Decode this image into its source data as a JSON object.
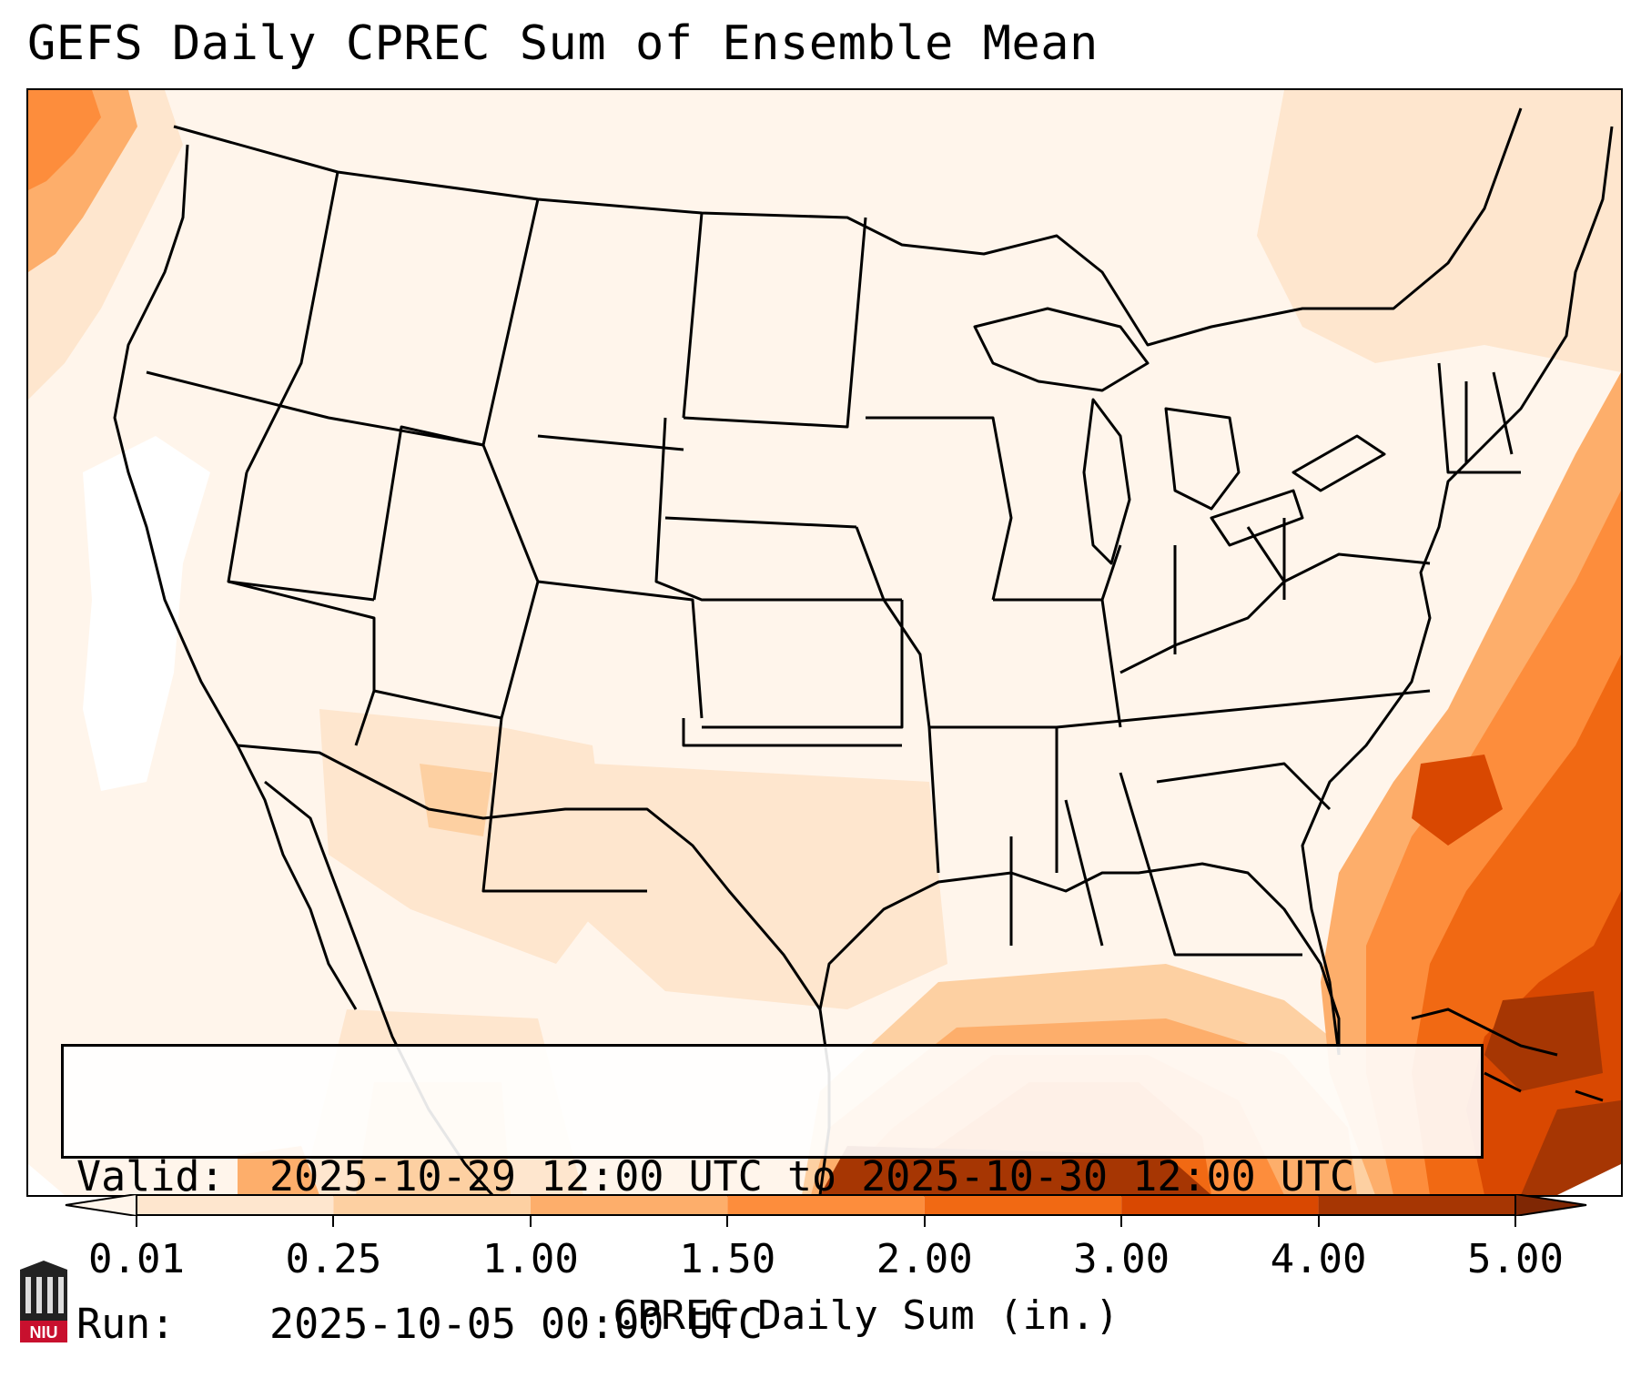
{
  "title": "GEFS Daily CPREC Sum of Ensemble Mean",
  "info": {
    "valid_label": "Valid:",
    "valid_value": "2025-10-29 12:00 UTC to 2025-10-30 12:00 UTC",
    "run_label": "Run:",
    "run_value": "2025-10-05 00:00 UTC"
  },
  "colorbar": {
    "label": "CPREC Daily Sum (in.)",
    "ticks": [
      "0.01",
      "0.25",
      "1.00",
      "1.50",
      "2.00",
      "3.00",
      "4.00",
      "5.00"
    ],
    "colors": [
      "#fff5eb",
      "#fee6ce",
      "#fdd0a2",
      "#fdae6b",
      "#fd8d3c",
      "#f16913",
      "#d94801",
      "#a63603",
      "#7f2704"
    ],
    "extend": "both"
  },
  "logo": {
    "text": "NIU"
  }
}
